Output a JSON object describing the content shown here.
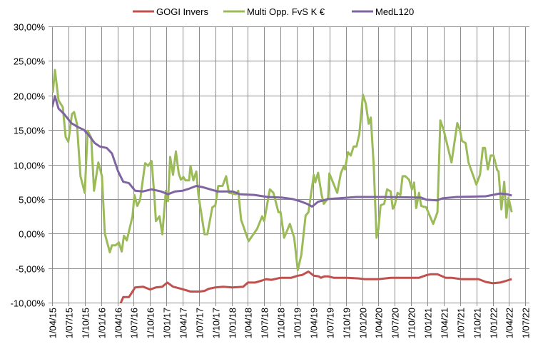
{
  "chart_data": {
    "type": "line",
    "title": "",
    "xlabel": "",
    "ylabel": "",
    "ylim": [
      -10,
      30
    ],
    "y_ticks": [
      "30,00%",
      "25,00%",
      "20,00%",
      "15,00%",
      "10,00%",
      "5,00%",
      "0,00%",
      "-5,00%",
      "-10,00%"
    ],
    "y_tick_values": [
      30,
      25,
      20,
      15,
      10,
      5,
      0,
      -5,
      -10
    ],
    "xlim": [
      "2015-04-01",
      "2022-07-01"
    ],
    "x_ticks": [
      "1/04/15",
      "1/07/15",
      "1/10/15",
      "1/01/16",
      "1/04/16",
      "1/07/16",
      "1/10/16",
      "1/01/17",
      "1/04/17",
      "1/07/17",
      "1/10/17",
      "1/01/18",
      "1/04/18",
      "1/07/18",
      "1/10/18",
      "1/01/19",
      "1/04/19",
      "1/07/19",
      "1/10/19",
      "1/01/20",
      "1/04/20",
      "1/07/20",
      "1/10/20",
      "1/01/21",
      "1/04/21",
      "1/07/21",
      "1/10/21",
      "1/01/22",
      "1/04/22",
      "1/07/22"
    ],
    "x_tick_dates": [
      "2015-04-01",
      "2015-07-01",
      "2015-10-01",
      "2016-01-01",
      "2016-04-01",
      "2016-07-01",
      "2016-10-01",
      "2017-01-01",
      "2017-04-01",
      "2017-07-01",
      "2017-10-01",
      "2018-01-01",
      "2018-04-01",
      "2018-07-01",
      "2018-10-01",
      "2019-01-01",
      "2019-04-01",
      "2019-07-01",
      "2019-10-01",
      "2020-01-01",
      "2020-04-01",
      "2020-07-01",
      "2020-10-01",
      "2021-01-01",
      "2021-04-01",
      "2021-07-01",
      "2021-10-01",
      "2022-01-01",
      "2022-04-01",
      "2022-07-01"
    ],
    "grid": true,
    "legend_position": "top",
    "unit": "%",
    "series": [
      {
        "name": "GOGI Invers",
        "color": "#C0504D",
        "points": [
          [
            "2016-04-17",
            -10.2
          ],
          [
            "2016-05-03",
            -9.2
          ],
          [
            "2016-06-04",
            -9.2
          ],
          [
            "2016-07-09",
            -7.8
          ],
          [
            "2016-08-22",
            -7.7
          ],
          [
            "2016-10-01",
            -8.1
          ],
          [
            "2016-11-02",
            -7.8
          ],
          [
            "2016-12-08",
            -7.7
          ],
          [
            "2017-01-05",
            -7.1
          ],
          [
            "2017-02-06",
            -7.7
          ],
          [
            "2017-03-22",
            -8.0
          ],
          [
            "2017-05-15",
            -8.4
          ],
          [
            "2017-07-05",
            -8.4
          ],
          [
            "2017-08-01",
            -8.3
          ],
          [
            "2017-08-25",
            -8.0
          ],
          [
            "2017-10-01",
            -7.8
          ],
          [
            "2017-11-14",
            -7.7
          ],
          [
            "2018-01-05",
            -7.8
          ],
          [
            "2018-03-06",
            -7.7
          ],
          [
            "2018-04-01",
            -7.1
          ],
          [
            "2018-05-11",
            -7.1
          ],
          [
            "2018-06-20",
            -6.8
          ],
          [
            "2018-07-13",
            -6.6
          ],
          [
            "2018-08-10",
            -6.7
          ],
          [
            "2018-10-01",
            -6.4
          ],
          [
            "2018-11-30",
            -6.4
          ],
          [
            "2019-01-05",
            -6.1
          ],
          [
            "2019-01-29",
            -6.0
          ],
          [
            "2019-03-06",
            -5.5
          ],
          [
            "2019-04-05",
            -6.1
          ],
          [
            "2019-05-03",
            -6.2
          ],
          [
            "2019-05-15",
            -6.4
          ],
          [
            "2019-06-04",
            -6.2
          ],
          [
            "2019-06-24",
            -6.2
          ],
          [
            "2019-07-25",
            -6.4
          ],
          [
            "2019-10-09",
            -6.4
          ],
          [
            "2019-12-12",
            -6.5
          ],
          [
            "2020-01-13",
            -6.6
          ],
          [
            "2020-04-01",
            -6.6
          ],
          [
            "2020-06-08",
            -6.4
          ],
          [
            "2020-11-14",
            -6.4
          ],
          [
            "2020-12-28",
            -6.0
          ],
          [
            "2021-01-17",
            -5.9
          ],
          [
            "2021-02-25",
            -5.9
          ],
          [
            "2021-04-13",
            -6.4
          ],
          [
            "2021-05-15",
            -6.4
          ],
          [
            "2021-07-09",
            -6.6
          ],
          [
            "2021-10-13",
            -6.6
          ],
          [
            "2021-11-22",
            -7.0
          ],
          [
            "2022-01-01",
            -7.2
          ],
          [
            "2022-02-10",
            -7.1
          ],
          [
            "2022-03-10",
            -6.9
          ],
          [
            "2022-04-17",
            -6.6
          ]
        ]
      },
      {
        "name": "Multi Opp. FvS K €",
        "color": "#9BBB59",
        "points": [
          [
            "2015-04-05",
            20.4
          ],
          [
            "2015-04-17",
            23.7
          ],
          [
            "2015-05-07",
            19.3
          ],
          [
            "2015-05-31",
            18.3
          ],
          [
            "2015-06-16",
            14.0
          ],
          [
            "2015-07-01",
            13.3
          ],
          [
            "2015-07-21",
            17.3
          ],
          [
            "2015-08-02",
            17.6
          ],
          [
            "2015-08-18",
            15.9
          ],
          [
            "2015-09-07",
            8.3
          ],
          [
            "2015-10-01",
            5.9
          ],
          [
            "2015-10-17",
            14.9
          ],
          [
            "2015-11-06",
            13.9
          ],
          [
            "2015-11-22",
            6.2
          ],
          [
            "2015-12-16",
            10.3
          ],
          [
            "2016-01-05",
            8.3
          ],
          [
            "2016-01-21",
            0.0
          ],
          [
            "2016-02-18",
            -2.7
          ],
          [
            "2016-03-01",
            -1.7
          ],
          [
            "2016-03-21",
            -1.7
          ],
          [
            "2016-04-09",
            -1.3
          ],
          [
            "2016-04-25",
            -2.6
          ],
          [
            "2016-05-07",
            -0.3
          ],
          [
            "2016-05-23",
            -1.0
          ],
          [
            "2016-06-24",
            2.5
          ],
          [
            "2016-07-05",
            5.6
          ],
          [
            "2016-07-21",
            4.0
          ],
          [
            "2016-08-06",
            4.9
          ],
          [
            "2016-09-03",
            10.2
          ],
          [
            "2016-09-19",
            9.8
          ],
          [
            "2016-10-09",
            10.5
          ],
          [
            "2016-10-25",
            5.2
          ],
          [
            "2016-11-02",
            1.8
          ],
          [
            "2016-11-22",
            2.5
          ],
          [
            "2016-12-08",
            -0.1
          ],
          [
            "2016-12-28",
            6.2
          ],
          [
            "2017-01-09",
            4.7
          ],
          [
            "2017-01-21",
            11.1
          ],
          [
            "2017-02-06",
            8.5
          ],
          [
            "2017-02-22",
            11.9
          ],
          [
            "2017-03-10",
            8.7
          ],
          [
            "2017-03-22",
            7.8
          ],
          [
            "2017-04-05",
            8.2
          ],
          [
            "2017-04-17",
            7.7
          ],
          [
            "2017-05-07",
            7.7
          ],
          [
            "2017-05-15",
            9.8
          ],
          [
            "2017-05-31",
            7.7
          ],
          [
            "2017-06-16",
            9.0
          ],
          [
            "2017-06-28",
            5.6
          ],
          [
            "2017-08-01",
            -0.1
          ],
          [
            "2017-08-17",
            -0.1
          ],
          [
            "2017-09-14",
            3.8
          ],
          [
            "2017-10-01",
            4.1
          ],
          [
            "2017-10-17",
            6.9
          ],
          [
            "2017-11-10",
            6.9
          ],
          [
            "2017-11-30",
            8.3
          ],
          [
            "2017-12-16",
            5.9
          ],
          [
            "2018-01-25",
            5.7
          ],
          [
            "2018-02-06",
            6.2
          ],
          [
            "2018-02-22",
            2.0
          ],
          [
            "2018-04-05",
            -1.1
          ],
          [
            "2018-05-23",
            0.7
          ],
          [
            "2018-06-20",
            2.5
          ],
          [
            "2018-07-01",
            1.8
          ],
          [
            "2018-08-02",
            6.4
          ],
          [
            "2018-08-22",
            5.9
          ],
          [
            "2018-09-19",
            3.1
          ],
          [
            "2018-10-01",
            3.1
          ],
          [
            "2018-10-21",
            -0.6
          ],
          [
            "2018-11-22",
            1.4
          ],
          [
            "2018-12-16",
            -0.6
          ],
          [
            "2019-01-05",
            -5.3
          ],
          [
            "2019-01-25",
            -3.1
          ],
          [
            "2019-02-18",
            2.6
          ],
          [
            "2019-03-06",
            3.1
          ],
          [
            "2019-04-05",
            8.5
          ],
          [
            "2019-04-13",
            7.4
          ],
          [
            "2019-04-29",
            8.8
          ],
          [
            "2019-05-19",
            5.6
          ],
          [
            "2019-05-31",
            4.3
          ],
          [
            "2019-06-24",
            5.1
          ],
          [
            "2019-07-01",
            8.7
          ],
          [
            "2019-08-14",
            5.9
          ],
          [
            "2019-09-03",
            8.7
          ],
          [
            "2019-09-19",
            9.7
          ],
          [
            "2019-09-27",
            9.3
          ],
          [
            "2019-10-13",
            11.8
          ],
          [
            "2019-10-29",
            11.3
          ],
          [
            "2019-11-14",
            12.6
          ],
          [
            "2019-11-30",
            12.6
          ],
          [
            "2019-12-16",
            14.4
          ],
          [
            "2020-01-05",
            20.1
          ],
          [
            "2020-01-21",
            18.8
          ],
          [
            "2020-02-06",
            15.9
          ],
          [
            "2020-02-18",
            16.8
          ],
          [
            "2020-03-05",
            10.0
          ],
          [
            "2020-03-21",
            -0.6
          ],
          [
            "2020-04-01",
            0.7
          ],
          [
            "2020-04-13",
            4.1
          ],
          [
            "2020-05-03",
            4.3
          ],
          [
            "2020-05-19",
            6.4
          ],
          [
            "2020-06-08",
            6.1
          ],
          [
            "2020-06-20",
            3.6
          ],
          [
            "2020-07-01",
            4.1
          ],
          [
            "2020-07-17",
            5.9
          ],
          [
            "2020-08-02",
            5.6
          ],
          [
            "2020-08-14",
            8.3
          ],
          [
            "2020-08-30",
            8.3
          ],
          [
            "2020-09-19",
            7.8
          ],
          [
            "2020-10-05",
            6.4
          ],
          [
            "2020-10-17",
            7.4
          ],
          [
            "2020-10-29",
            3.7
          ],
          [
            "2020-11-14",
            5.9
          ],
          [
            "2020-11-26",
            4.0
          ],
          [
            "2020-12-24",
            3.8
          ],
          [
            "2021-02-01",
            1.4
          ],
          [
            "2021-02-25",
            3.1
          ],
          [
            "2021-03-13",
            16.4
          ],
          [
            "2021-04-01",
            15.0
          ],
          [
            "2021-05-15",
            10.3
          ],
          [
            "2021-06-16",
            16.0
          ],
          [
            "2021-07-01",
            15.0
          ],
          [
            "2021-07-13",
            13.4
          ],
          [
            "2021-08-02",
            13.1
          ],
          [
            "2021-08-18",
            10.3
          ],
          [
            "2021-10-01",
            7.1
          ],
          [
            "2021-10-21",
            8.5
          ],
          [
            "2021-11-06",
            12.4
          ],
          [
            "2021-11-18",
            12.4
          ],
          [
            "2021-12-04",
            9.3
          ],
          [
            "2021-12-20",
            11.3
          ],
          [
            "2022-01-05",
            11.3
          ],
          [
            "2022-01-25",
            9.2
          ],
          [
            "2022-02-02",
            9.0
          ],
          [
            "2022-02-18",
            3.5
          ],
          [
            "2022-03-06",
            7.5
          ],
          [
            "2022-03-18",
            2.3
          ],
          [
            "2022-03-30",
            5.2
          ],
          [
            "2022-04-17",
            3.1
          ]
        ]
      },
      {
        "name": "MedL120",
        "color": "#8064A2",
        "points": [
          [
            "2015-04-01",
            18.3
          ],
          [
            "2015-04-17",
            19.9
          ],
          [
            "2015-05-07",
            18.1
          ],
          [
            "2015-06-08",
            17.3
          ],
          [
            "2015-07-17",
            16.0
          ],
          [
            "2015-08-26",
            15.4
          ],
          [
            "2015-09-27",
            15.0
          ],
          [
            "2015-10-25",
            14.2
          ],
          [
            "2015-11-26",
            13.1
          ],
          [
            "2015-12-24",
            12.6
          ],
          [
            "2016-02-01",
            12.4
          ],
          [
            "2016-03-01",
            11.6
          ],
          [
            "2016-04-05",
            9.0
          ],
          [
            "2016-05-03",
            7.5
          ],
          [
            "2016-06-04",
            7.3
          ],
          [
            "2016-07-09",
            6.2
          ],
          [
            "2016-08-22",
            6.1
          ],
          [
            "2016-10-09",
            6.4
          ],
          [
            "2016-11-30",
            6.1
          ],
          [
            "2017-01-09",
            5.7
          ],
          [
            "2017-02-18",
            6.1
          ],
          [
            "2017-03-30",
            6.2
          ],
          [
            "2017-05-07",
            6.5
          ],
          [
            "2017-06-16",
            6.9
          ],
          [
            "2017-07-25",
            6.7
          ],
          [
            "2017-09-02",
            6.4
          ],
          [
            "2017-10-13",
            6.1
          ],
          [
            "2018-01-05",
            6.1
          ],
          [
            "2018-02-14",
            5.7
          ],
          [
            "2018-05-07",
            5.6
          ],
          [
            "2018-07-21",
            5.3
          ],
          [
            "2018-10-09",
            5.2
          ],
          [
            "2018-12-08",
            5.0
          ],
          [
            "2019-01-17",
            4.7
          ],
          [
            "2019-02-26",
            4.3
          ],
          [
            "2019-03-26",
            3.9
          ],
          [
            "2019-04-29",
            4.6
          ],
          [
            "2019-06-24",
            5.0
          ],
          [
            "2019-08-22",
            5.1
          ],
          [
            "2019-11-30",
            5.3
          ],
          [
            "2020-05-11",
            5.3
          ],
          [
            "2020-11-26",
            5.2
          ],
          [
            "2020-12-24",
            4.9
          ],
          [
            "2021-02-21",
            4.8
          ],
          [
            "2021-03-25",
            5.1
          ],
          [
            "2021-06-12",
            5.3
          ],
          [
            "2021-11-22",
            5.4
          ],
          [
            "2022-01-01",
            5.6
          ],
          [
            "2022-02-10",
            5.8
          ],
          [
            "2022-03-22",
            5.7
          ],
          [
            "2022-04-17",
            5.5
          ]
        ]
      }
    ]
  }
}
